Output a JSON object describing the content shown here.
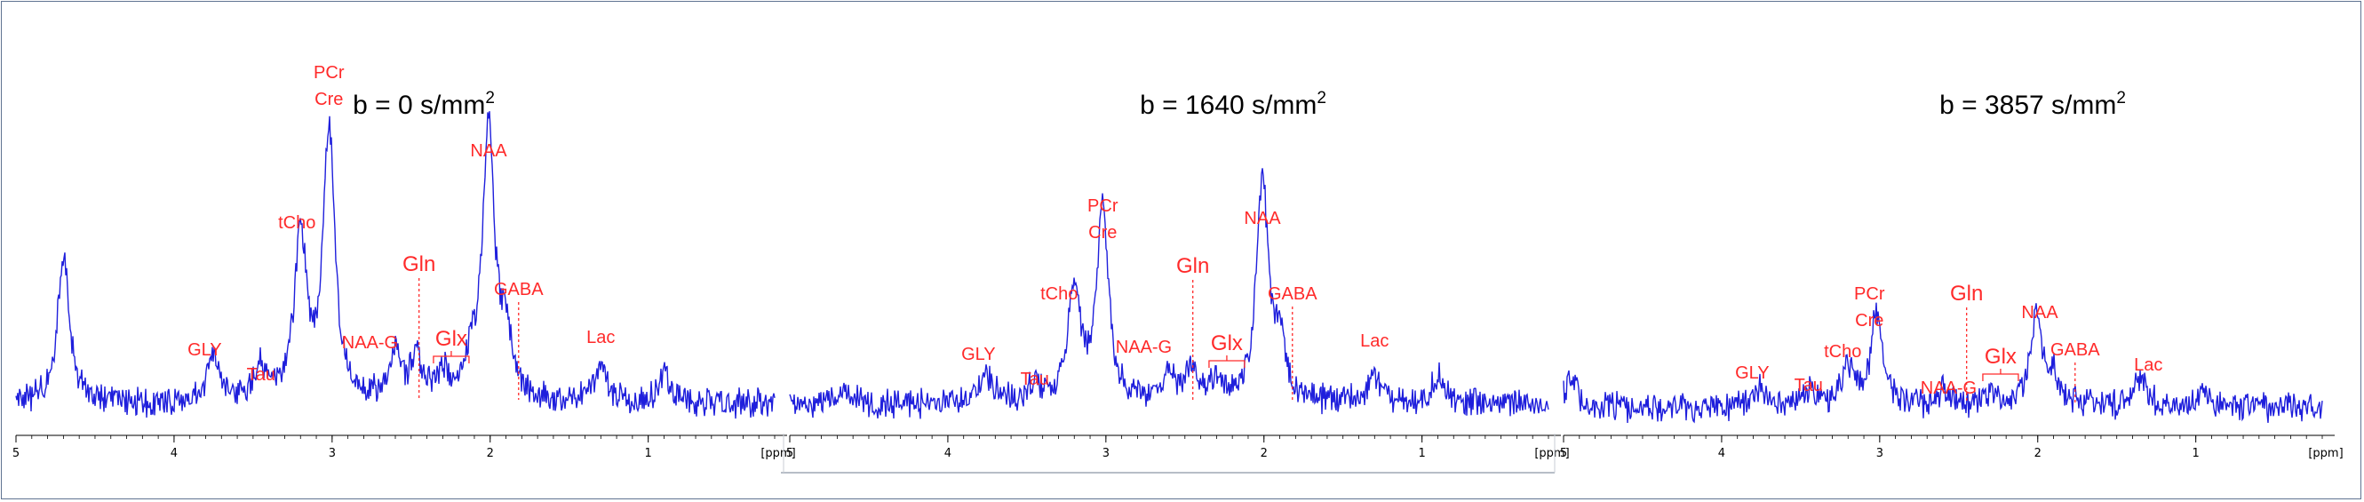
{
  "chart_data": [
    {
      "type": "line",
      "panel": "left",
      "title": "b = 0 s/mm",
      "title_superscript": "2",
      "x_unit_label": "[ppm]",
      "x_ticks": [
        "5",
        "4",
        "3",
        "2",
        "1"
      ],
      "xlim": [
        5,
        0.2
      ],
      "x_reversed": true,
      "line_color": "#1f1fdc",
      "label_color": "#ff2a2a",
      "peaks": [
        {
          "ppm": 4.7,
          "height": 0.55
        },
        {
          "ppm": 3.75,
          "height": 0.18
        },
        {
          "ppm": 3.45,
          "height": 0.12
        },
        {
          "ppm": 3.2,
          "height": 0.62
        },
        {
          "ppm": 3.02,
          "height": 1.0
        },
        {
          "ppm": 2.6,
          "height": 0.17
        },
        {
          "ppm": 2.47,
          "height": 0.15
        },
        {
          "ppm": 2.3,
          "height": 0.1
        },
        {
          "ppm": 2.12,
          "height": 0.12
        },
        {
          "ppm": 2.01,
          "height": 1.0
        },
        {
          "ppm": 1.9,
          "height": 0.22
        },
        {
          "ppm": 1.3,
          "height": 0.15
        },
        {
          "ppm": 0.9,
          "height": 0.1
        }
      ],
      "annotations": [
        {
          "text": "PCr",
          "ppm": 3.02
        },
        {
          "text": "Cre",
          "ppm": 3.02
        },
        {
          "text": "tCho",
          "ppm": 3.2
        },
        {
          "text": "NAA",
          "ppm": 2.01
        },
        {
          "text": "Gln",
          "ppm": 2.45
        },
        {
          "text": "GABA",
          "ppm": 1.82
        },
        {
          "text": "NAA-G",
          "ppm": 2.62
        },
        {
          "text": "Glx",
          "ppm": 2.28
        },
        {
          "text": "GLY",
          "ppm": 3.75
        },
        {
          "text": "Tau",
          "ppm": 3.45
        },
        {
          "text": "Lac",
          "ppm": 1.3
        }
      ]
    },
    {
      "type": "line",
      "panel": "middle",
      "title": "b = 1640 s/mm",
      "title_superscript": "2",
      "x_unit_label": "[ppm]",
      "x_ticks": [
        "5",
        "4",
        "3",
        "2",
        "1"
      ],
      "xlim": [
        5,
        0.2
      ],
      "x_reversed": true,
      "line_color": "#1f1fdc",
      "label_color": "#ff2a2a",
      "peaks": [
        {
          "ppm": 4.65,
          "height": 0.06
        },
        {
          "ppm": 3.75,
          "height": 0.1
        },
        {
          "ppm": 3.45,
          "height": 0.07
        },
        {
          "ppm": 3.2,
          "height": 0.42
        },
        {
          "ppm": 3.02,
          "height": 0.7
        },
        {
          "ppm": 2.6,
          "height": 0.1
        },
        {
          "ppm": 2.45,
          "height": 0.12
        },
        {
          "ppm": 2.3,
          "height": 0.08
        },
        {
          "ppm": 2.01,
          "height": 0.82
        },
        {
          "ppm": 1.9,
          "height": 0.2
        },
        {
          "ppm": 1.3,
          "height": 0.1
        },
        {
          "ppm": 0.9,
          "height": 0.1
        }
      ],
      "annotations": [
        {
          "text": "PCr",
          "ppm": 3.02
        },
        {
          "text": "Cre",
          "ppm": 3.02
        },
        {
          "text": "tCho",
          "ppm": 3.2
        },
        {
          "text": "NAA",
          "ppm": 2.01
        },
        {
          "text": "Gln",
          "ppm": 2.45
        },
        {
          "text": "GABA",
          "ppm": 1.82
        },
        {
          "text": "NAA-G",
          "ppm": 2.62
        },
        {
          "text": "Glx",
          "ppm": 2.28
        },
        {
          "text": "GLY",
          "ppm": 3.75
        },
        {
          "text": "Tau",
          "ppm": 3.45
        },
        {
          "text": "Lac",
          "ppm": 1.3
        }
      ]
    },
    {
      "type": "line",
      "panel": "right",
      "title": "b = 3857 s/mm",
      "title_superscript": "2",
      "x_unit_label": "[ppm]",
      "x_ticks": [
        "5",
        "4",
        "3",
        "2",
        "1"
      ],
      "xlim": [
        5,
        0.2
      ],
      "x_reversed": true,
      "line_color": "#1f1fdc",
      "label_color": "#ff2a2a",
      "peaks": [
        {
          "ppm": 4.95,
          "height": 0.1
        },
        {
          "ppm": 3.75,
          "height": 0.06
        },
        {
          "ppm": 3.45,
          "height": 0.05
        },
        {
          "ppm": 3.2,
          "height": 0.14
        },
        {
          "ppm": 3.02,
          "height": 0.33
        },
        {
          "ppm": 2.6,
          "height": 0.06
        },
        {
          "ppm": 2.3,
          "height": 0.05
        },
        {
          "ppm": 2.01,
          "height": 0.33
        },
        {
          "ppm": 1.9,
          "height": 0.1
        },
        {
          "ppm": 1.35,
          "height": 0.1
        },
        {
          "ppm": 0.95,
          "height": 0.06
        }
      ],
      "annotations": [
        {
          "text": "PCr",
          "ppm": 3.02
        },
        {
          "text": "Cre",
          "ppm": 3.02
        },
        {
          "text": "tCho",
          "ppm": 3.2
        },
        {
          "text": "NAA",
          "ppm": 2.01
        },
        {
          "text": "Gln",
          "ppm": 2.45
        },
        {
          "text": "GABA",
          "ppm": 1.82
        },
        {
          "text": "NAA-G",
          "ppm": 2.62
        },
        {
          "text": "Glx",
          "ppm": 2.28
        },
        {
          "text": "GLY",
          "ppm": 3.75
        },
        {
          "text": "Tau",
          "ppm": 3.45
        },
        {
          "text": "Lac",
          "ppm": 1.3
        }
      ]
    }
  ]
}
